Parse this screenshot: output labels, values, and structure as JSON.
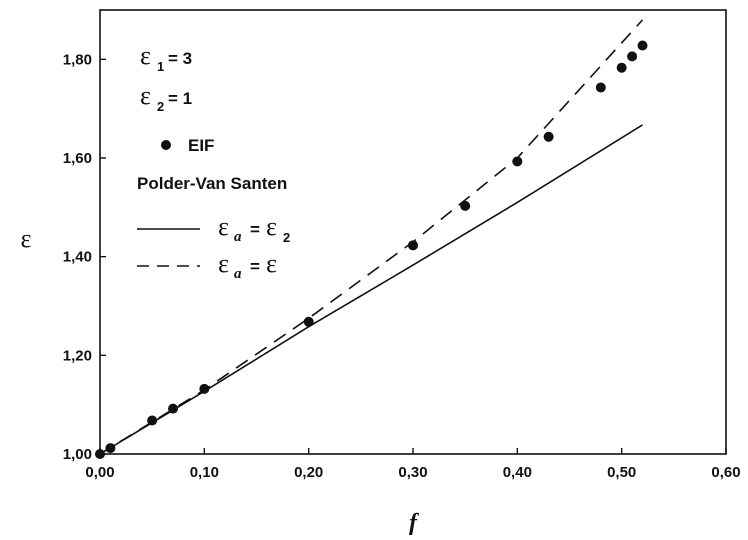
{
  "chart_data": {
    "type": "scatter",
    "xlabel": "f",
    "ylabel": "ε",
    "xlim": [
      0,
      0.6
    ],
    "ylim": [
      1.0,
      1.9
    ],
    "x_ticks": [
      0,
      0.1,
      0.2,
      0.3,
      0.4,
      0.5,
      0.6
    ],
    "x_tick_labels": [
      "0,00",
      "0,10",
      "0,20",
      "0,30",
      "0,40",
      "0,50",
      "0,60"
    ],
    "y_ticks": [
      1.0,
      1.2,
      1.4,
      1.6,
      1.8
    ],
    "y_tick_labels": [
      "1,00",
      "1,20",
      "1,40",
      "1,60",
      "1,80"
    ],
    "grid": false,
    "legend_position": "top-left",
    "annotations": {
      "eps1": {
        "symbol": "ε",
        "sub": "1",
        "value": "= 3"
      },
      "eps2": {
        "symbol": "ε",
        "sub": "2",
        "value": "= 1"
      }
    },
    "legend_group_title": "Polder-Van Santen",
    "series": [
      {
        "name": "EIF",
        "style": "markers",
        "x": [
          0.0,
          0.01,
          0.05,
          0.07,
          0.1,
          0.2,
          0.3,
          0.35,
          0.4,
          0.43,
          0.48,
          0.5,
          0.51,
          0.52
        ],
        "y": [
          1.0,
          1.012,
          1.068,
          1.092,
          1.132,
          1.268,
          1.423,
          1.503,
          1.593,
          1.643,
          1.743,
          1.783,
          1.806,
          1.828
        ]
      },
      {
        "name": "εa = ε2",
        "legend": {
          "symbol": "ε",
          "sub": "a",
          "rhs": "ε",
          "rhs_sub": "2"
        },
        "style": "solid",
        "x": [
          0.0,
          0.1,
          0.2,
          0.3,
          0.4,
          0.52
        ],
        "y": [
          1.0,
          1.127,
          1.258,
          1.383,
          1.51,
          1.667
        ]
      },
      {
        "name": "εa = ε",
        "legend": {
          "symbol": "ε",
          "sub": "a",
          "rhs": "ε",
          "rhs_sub": ""
        },
        "style": "dashed",
        "x": [
          0.0,
          0.1,
          0.2,
          0.3,
          0.4,
          0.52
        ],
        "y": [
          1.0,
          1.13,
          1.275,
          1.43,
          1.6,
          1.88
        ]
      }
    ]
  }
}
